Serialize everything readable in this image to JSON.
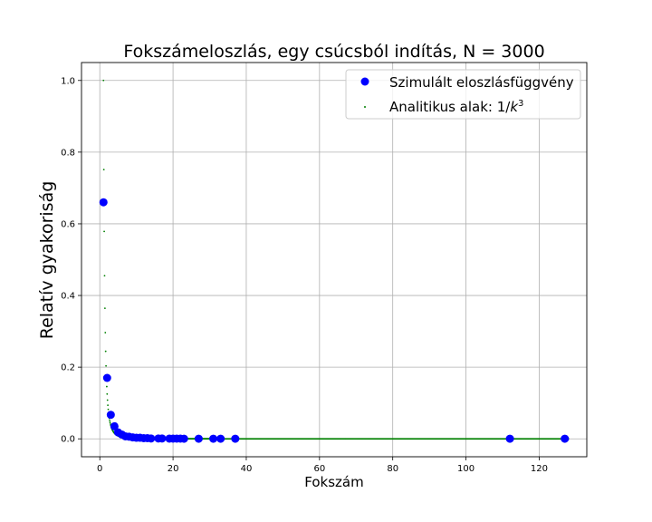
{
  "chart_data": {
    "type": "scatter",
    "title": "Fokszámeloszlás, egy csúcsból indítás, N = 3000",
    "xlabel": "Fokszám",
    "ylabel": "Relatív gyakoriság",
    "xlim": [
      -5,
      133
    ],
    "ylim": [
      -0.05,
      1.05
    ],
    "xticks": [
      0,
      20,
      40,
      60,
      80,
      100,
      120
    ],
    "yticks": [
      0.0,
      0.2,
      0.4,
      0.6,
      0.8,
      1.0
    ],
    "xtick_labels": [
      "0",
      "20",
      "40",
      "60",
      "80",
      "100",
      "120"
    ],
    "ytick_labels": [
      "0.0",
      "0.2",
      "0.4",
      "0.6",
      "0.8",
      "1.0"
    ],
    "grid": true,
    "legend_position": "top-right",
    "series": [
      {
        "name": "Szimulált eloszlásfüggvény",
        "marker": "large-circle",
        "color": "#0000ff",
        "points": [
          [
            1,
            0.66
          ],
          [
            2,
            0.17
          ],
          [
            3,
            0.067
          ],
          [
            4,
            0.035
          ],
          [
            5,
            0.018
          ],
          [
            6,
            0.012
          ],
          [
            7,
            0.007
          ],
          [
            8,
            0.006
          ],
          [
            9,
            0.004
          ],
          [
            10,
            0.003
          ],
          [
            11,
            0.003
          ],
          [
            12,
            0.002
          ],
          [
            13,
            0.002
          ],
          [
            14,
            0.001
          ],
          [
            16,
            0.001
          ],
          [
            17,
            0.001
          ],
          [
            19,
            0.0007
          ],
          [
            20,
            0.0007
          ],
          [
            21,
            0.0007
          ],
          [
            22,
            0.0007
          ],
          [
            23,
            0.0003
          ],
          [
            27,
            0.0003
          ],
          [
            31,
            0.0003
          ],
          [
            33,
            0.0003
          ],
          [
            37,
            0.0003
          ],
          [
            112,
            0.0003
          ],
          [
            127,
            0.0003
          ]
        ]
      },
      {
        "name": "Analitikus alak: 1/k³",
        "legend_label_prefix": "Analitikus alak: 1/",
        "legend_label_k": "k",
        "legend_label_exp": "3",
        "marker": "small-dot",
        "color": "#008000",
        "function": "1/k^3",
        "x_range": [
          1,
          128
        ],
        "x_step": 0.1
      }
    ]
  }
}
